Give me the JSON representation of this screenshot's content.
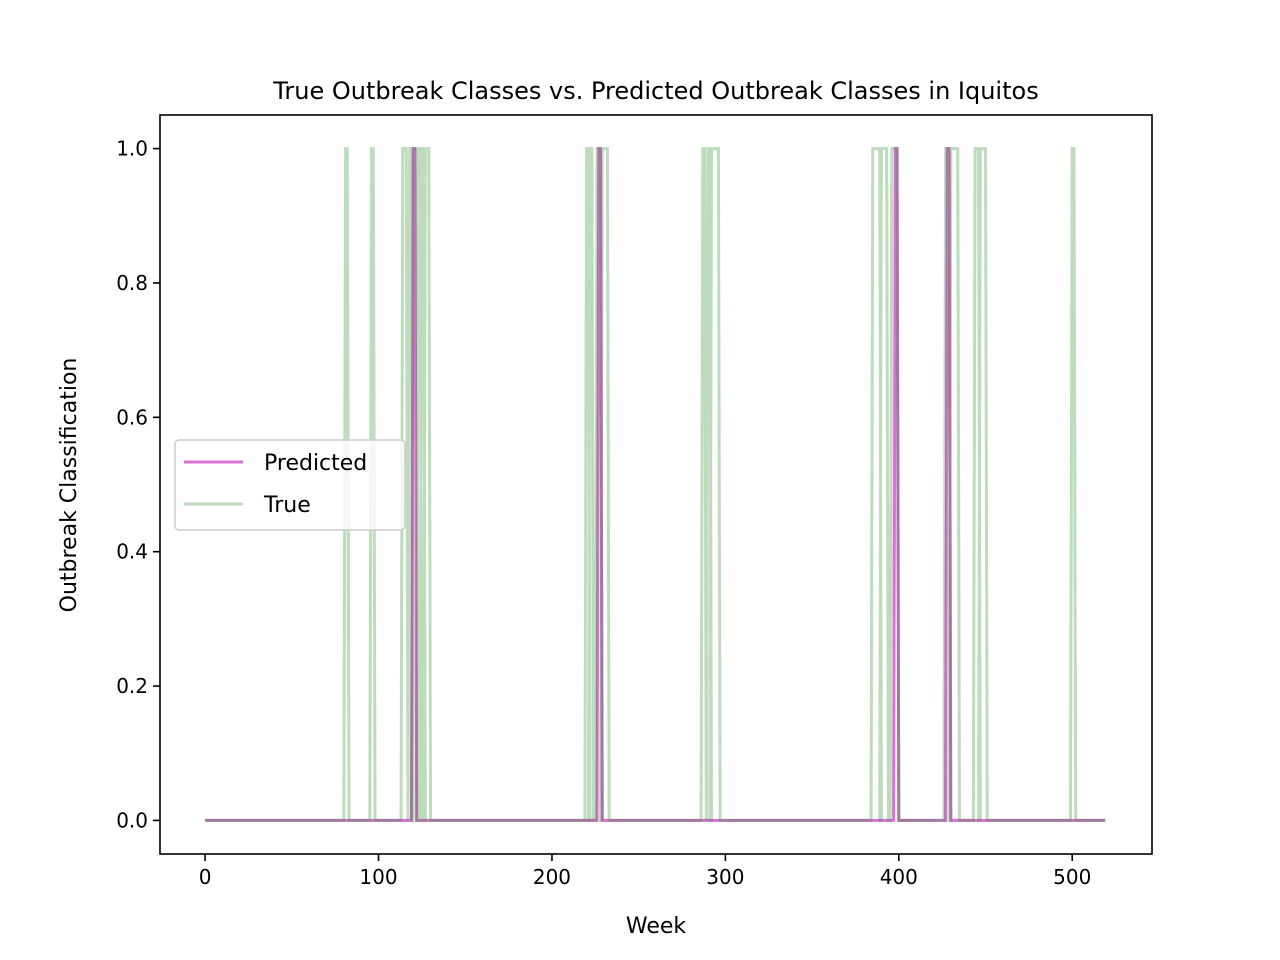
{
  "chart_data": {
    "type": "line",
    "title": "True Outbreak Classes vs. Predicted Outbreak Classes in Iquitos",
    "xlabel": "Week",
    "ylabel": "Outbreak Classification",
    "xlim": [
      -26,
      546
    ],
    "ylim": [
      -0.05,
      1.05
    ],
    "xticks": [
      0,
      100,
      200,
      300,
      400,
      500
    ],
    "xtick_labels": [
      "0",
      "100",
      "200",
      "300",
      "400",
      "500"
    ],
    "yticks": [
      0.0,
      0.2,
      0.4,
      0.6,
      0.8,
      1.0
    ],
    "ytick_labels": [
      "0.0",
      "0.2",
      "0.4",
      "0.6",
      "0.8",
      "1.0"
    ],
    "grid": false,
    "legend_position": "center-left",
    "x_range": [
      0,
      519
    ],
    "series": [
      {
        "name": "Predicted",
        "color": "#da70d6",
        "alpha": 1.0,
        "draw_order": 1,
        "outbreak_intervals": [
          [
            120,
            121
          ],
          [
            227,
            228
          ],
          [
            398,
            399
          ],
          [
            428,
            429
          ]
        ]
      },
      {
        "name": "True",
        "color": "#228b22",
        "alpha": 0.3,
        "draw_order": 2,
        "outbreak_intervals": [
          [
            81,
            82
          ],
          [
            96,
            97
          ],
          [
            114,
            116
          ],
          [
            118,
            119
          ],
          [
            120,
            122
          ],
          [
            123,
            124
          ],
          [
            125,
            126
          ],
          [
            127,
            129
          ],
          [
            220,
            221
          ],
          [
            222,
            223
          ],
          [
            226,
            228
          ],
          [
            229,
            232
          ],
          [
            287,
            288
          ],
          [
            290,
            291
          ],
          [
            292,
            296
          ],
          [
            385,
            389
          ],
          [
            390,
            393
          ],
          [
            396,
            399
          ],
          [
            427,
            429
          ],
          [
            430,
            434
          ],
          [
            444,
            446
          ],
          [
            447,
            450
          ],
          [
            500,
            501
          ]
        ]
      }
    ]
  }
}
